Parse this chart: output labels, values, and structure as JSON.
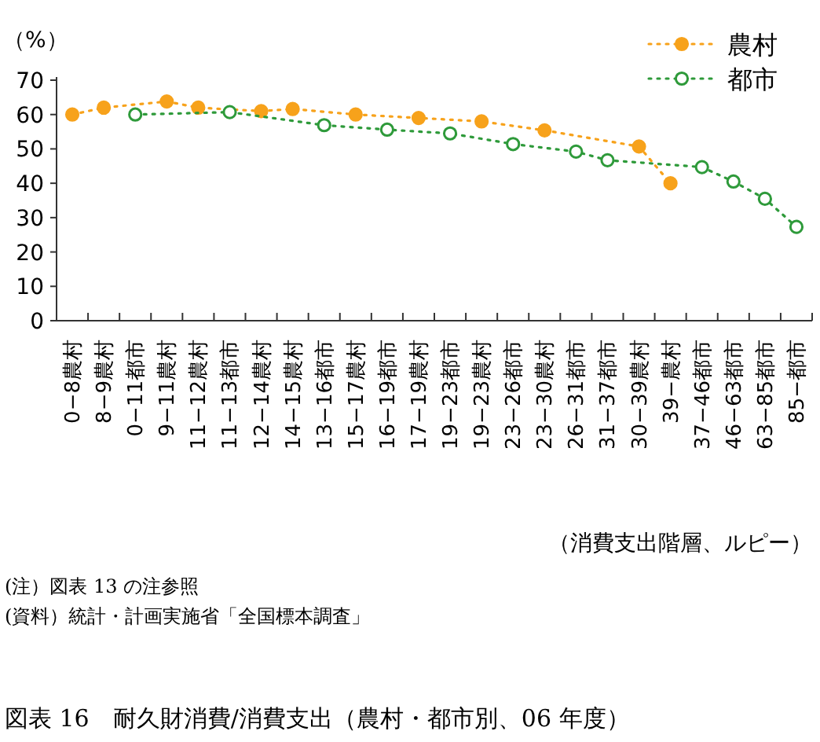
{
  "chart_data": {
    "type": "line",
    "ylabel": "（%）",
    "xlabel": "（消費支出階層、ルピー）",
    "categories": [
      "0−8農村",
      "8−9農村",
      "0−11都市",
      "9−11農村",
      "11−12農村",
      "11−13都市",
      "12−14農村",
      "14−15農村",
      "13−16都市",
      "15−17農村",
      "16−19都市",
      "17−19農村",
      "19−23都市",
      "19−23農村",
      "23−26都市",
      "23−30農村",
      "26−31都市",
      "31−37都市",
      "30−39農村",
      "39−農村",
      "37−46都市",
      "46−63都市",
      "63−85都市",
      "85−都市"
    ],
    "series": [
      {
        "name": "農村",
        "color": "#f7a21b",
        "values": [
          60,
          62,
          null,
          63.8,
          62,
          null,
          61,
          61.6,
          null,
          60,
          null,
          59,
          null,
          58,
          null,
          55.4,
          null,
          null,
          50.7,
          40,
          null,
          null,
          null,
          null
        ]
      },
      {
        "name": "都市",
        "color": "#2e9a3a",
        "values": [
          null,
          null,
          60,
          null,
          null,
          60.7,
          null,
          null,
          56.9,
          null,
          55.6,
          null,
          54.5,
          null,
          51.4,
          null,
          49.2,
          46.7,
          null,
          null,
          44.7,
          40.5,
          35.5,
          27.3
        ]
      }
    ],
    "ylim": [
      0,
      70
    ],
    "yticks": [
      0,
      10,
      20,
      30,
      40,
      50,
      60,
      70
    ],
    "grid": false,
    "legend": "top right",
    "marker": "circle",
    "line_style": "dotted",
    "annotations": [
      "(注）図表 13 の注参照",
      "(資料）統計・計画実施省「全国標本調査」",
      "図表 16　耐久財消費/消費支出（農村・都市別、06 年度）"
    ]
  }
}
